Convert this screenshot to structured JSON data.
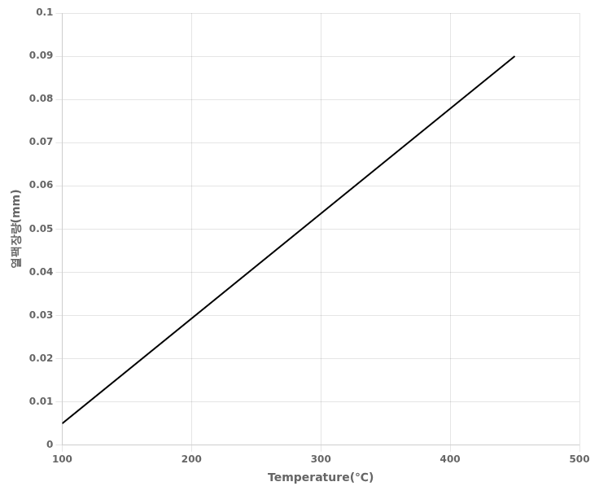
{
  "chart_data": {
    "type": "line",
    "x": [
      100,
      450
    ],
    "values": [
      0.005,
      0.09
    ],
    "color": "#000000",
    "xlabel": "Temperature(℃)",
    "ylabel": "열팩장량(mm)",
    "xlim": [
      100,
      500
    ],
    "xticks": [
      100,
      200,
      300,
      400,
      500
    ],
    "ylim": [
      0,
      0.1
    ],
    "yticks": [
      0,
      0.01,
      0.02,
      0.03,
      0.04,
      0.05,
      0.06,
      0.07,
      0.08,
      0.09,
      0.1
    ],
    "grid": true
  }
}
